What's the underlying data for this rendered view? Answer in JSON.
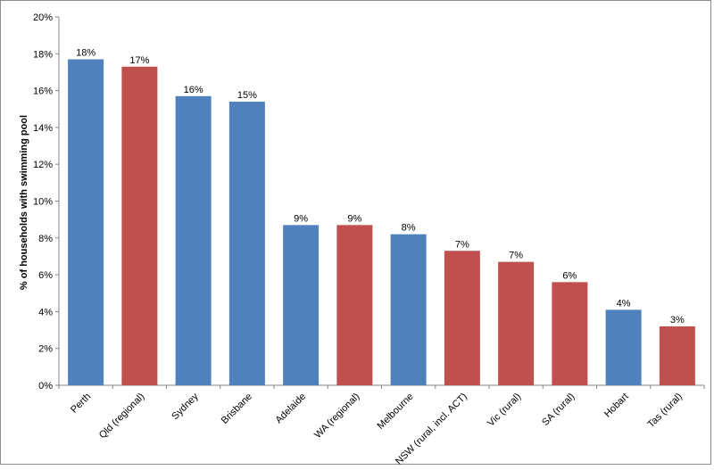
{
  "chart_data": {
    "type": "bar",
    "title": "",
    "xlabel": "",
    "ylabel": "% of households with swimming pool",
    "ylim": [
      0,
      20
    ],
    "ytick_step": 2,
    "ytick_suffix": "%",
    "grid": false,
    "legend": "none",
    "categories": [
      "Perth",
      "Qld (regional)",
      "Sydney",
      "Brisbane",
      "Adelaide",
      "WA (regional)",
      "Melbourne",
      "NSW (rural, incl. ACT)",
      "Vic (rural)",
      "SA (rural)",
      "Hobart",
      "Tas (rural)"
    ],
    "values": [
      17.7,
      17.3,
      15.7,
      15.4,
      8.7,
      8.7,
      8.2,
      7.3,
      6.7,
      5.6,
      4.1,
      3.2
    ],
    "data_labels": [
      "18%",
      "17%",
      "16%",
      "15%",
      "9%",
      "9%",
      "8%",
      "7%",
      "7%",
      "6%",
      "4%",
      "3%"
    ],
    "bar_colors": [
      "#4F81BD",
      "#C0504D",
      "#4F81BD",
      "#4F81BD",
      "#4F81BD",
      "#C0504D",
      "#4F81BD",
      "#C0504D",
      "#C0504D",
      "#C0504D",
      "#4F81BD",
      "#C0504D"
    ]
  }
}
